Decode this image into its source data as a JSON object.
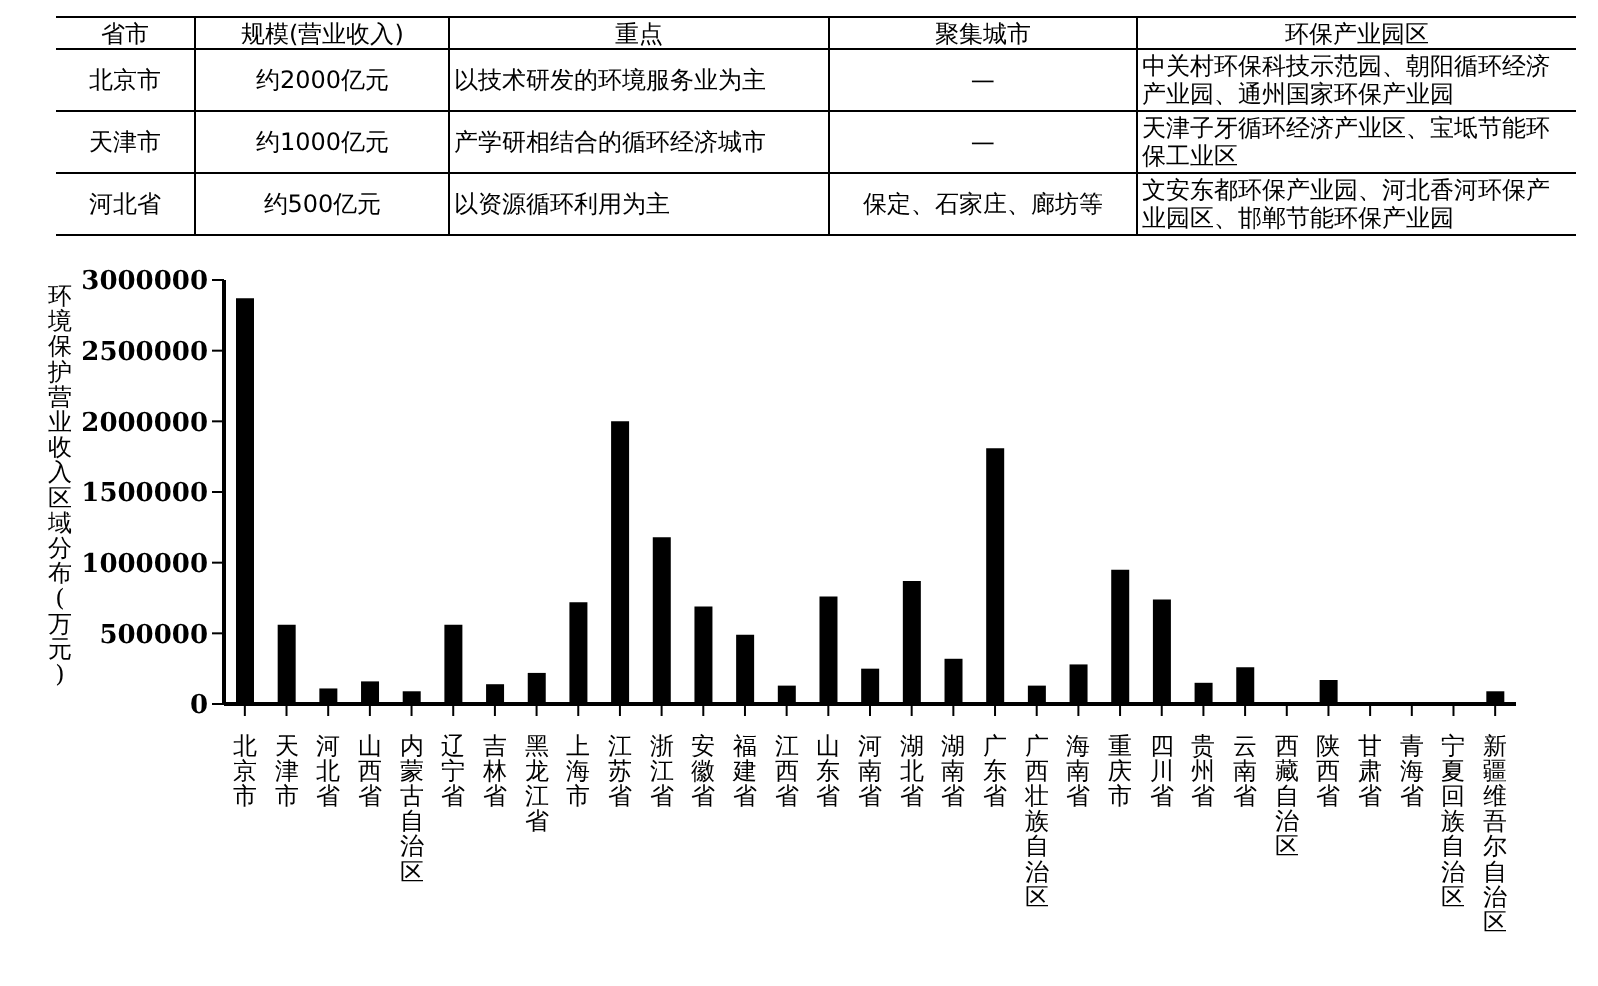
{
  "chart_data": [
    {
      "type": "other",
      "categories": [
        "省市",
        "规模(营业收入)",
        "重点",
        "聚集城市",
        "环保产业园区"
      ],
      "annotations": [
        "北京市",
        "约2000亿元",
        "以技术研发的环境服务业为主",
        "—",
        "中关村环保科技示范园、朝阳循环经济产业园、通州国家环保产业园",
        "天津市",
        "约1000亿元",
        "产学研相结合的循环经济城市",
        "—",
        "天津子牙循环经济产业区、宝坻节能环保工业区",
        "河北省",
        "约500亿元",
        "以资源循环利用为主",
        "保定、石家庄、廊坊等",
        "文安东都环保产业园、河北香河环保产业园区、邯郸节能环保产业园"
      ]
    },
    {
      "type": "bar",
      "ylabel": "环境保护营业收入区域分布(万元)",
      "categories": [
        "北京市",
        "天津市",
        "河北省",
        "山西省",
        "内蒙古自治区",
        "辽宁省",
        "吉林省",
        "黑龙江省",
        "上海市",
        "江苏省",
        "浙江省",
        "安徽省",
        "福建省",
        "江西省",
        "山东省",
        "河南省",
        "湖北省",
        "湖南省",
        "广东省",
        "广西壮族自治区",
        "海南省",
        "重庆市",
        "四川省",
        "贵州省",
        "云南省",
        "西藏自治区",
        "陕西省",
        "甘肃省",
        "青海省",
        "宁夏回族自治区",
        "新疆维吾尔自治区"
      ],
      "values": [
        2870000,
        560000,
        110000,
        160000,
        90000,
        560000,
        140000,
        220000,
        720000,
        2000000,
        1180000,
        690000,
        490000,
        130000,
        760000,
        250000,
        870000,
        320000,
        1810000,
        130000,
        280000,
        950000,
        740000,
        150000,
        260000,
        0,
        170000,
        0,
        10000,
        10000,
        90000
      ],
      "color": "#000000",
      "ylim": [
        0,
        3000000
      ],
      "yticks": [
        0,
        500000,
        1000000,
        1500000,
        2000000,
        2500000,
        3000000
      ],
      "grid": false,
      "legend": false
    }
  ]
}
